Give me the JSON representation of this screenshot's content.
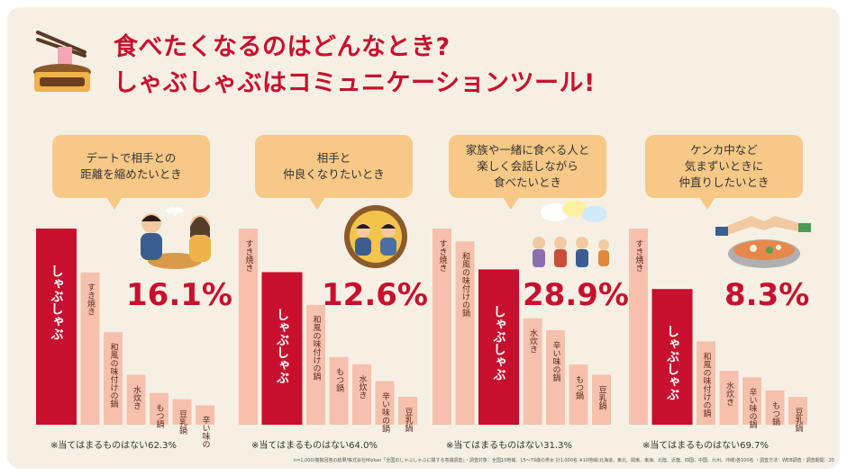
{
  "title_line1": "食べたくなるのはどんなとき?",
  "title_line2": "しゃぶしゃぶはコミュニケーションツール!",
  "footnote": "n=1,000/複数回答の結果/株式会社Mizkan「全国のしゃぶしゃぶに関する意識調査」・調査対象：全国10地域、15～79歳の男女 計1,000名 ※10地域(北海道、東北、関東、東海、北陸、近畿、四国、中国、九州、沖縄)各100名 ・調査方法：WEB調査・調査期間：2021年7月13日(火)～2021年7月15日(木)",
  "colors": {
    "highlight": "#c8102e",
    "bar": "#f7c0ad",
    "bubble": "#f7c886",
    "background": "#f6f0e4"
  },
  "chart_data": [
    {
      "type": "bar",
      "scenario_lines": [
        "デートで相手との",
        "距離を縮めたいとき"
      ],
      "categories": [
        "しゃぶしゃぶ",
        "すき焼き",
        "和風の味付けの鍋",
        "水炊き",
        "もつ鍋",
        "豆乳鍋",
        "辛い味の鍋"
      ],
      "values": [
        16.1,
        12.5,
        7.6,
        4.1,
        2.6,
        2.1,
        1.6
      ],
      "highlight": "しゃぶしゃぶ",
      "highlight_label": "16.1%",
      "none_note": "※当てはまるものはない62.3%"
    },
    {
      "type": "bar",
      "scenario_lines": [
        "相手と",
        "仲良くなりたいとき"
      ],
      "categories": [
        "すき焼き",
        "しゃぶしゃぶ",
        "和風の味付けの鍋",
        "もつ鍋",
        "水炊き",
        "辛い味の鍋",
        "豆乳鍋"
      ],
      "values": [
        16.2,
        12.6,
        9.9,
        5.6,
        5.0,
        3.6,
        2.3
      ],
      "highlight": "しゃぶしゃぶ",
      "highlight_label": "12.6%",
      "none_note": "※当てはまるものはない64.0%"
    },
    {
      "type": "bar",
      "scenario_lines": [
        "家族や一緒に食べる人と",
        "楽しく会話しながら",
        "食べたいとき"
      ],
      "categories": [
        "すき焼き",
        "和風の味付けの鍋",
        "しゃぶしゃぶ",
        "水炊き",
        "辛い味の鍋",
        "もつ鍋",
        "豆乳鍋"
      ],
      "values": [
        36.5,
        34.1,
        28.9,
        19.8,
        17.6,
        11.2,
        9.3
      ],
      "highlight": "しゃぶしゃぶ",
      "highlight_label": "28.9%",
      "none_note": "※当てはまるものはない31.3%"
    },
    {
      "type": "bar",
      "scenario_lines": [
        "ケンカ中など",
        "気まずいときに",
        "仲直りしたいとき"
      ],
      "categories": [
        "すき焼き",
        "しゃぶしゃぶ",
        "和風の味付けの鍋",
        "水炊き",
        "辛い味の鍋",
        "もつ鍋",
        "豆乳鍋"
      ],
      "values": [
        12.0,
        8.3,
        5.1,
        3.3,
        2.9,
        2.1,
        1.7
      ],
      "highlight": "しゃぶしゃぶ",
      "highlight_label": "8.3%",
      "none_note": "※当てはまるものはない69.7%"
    }
  ]
}
